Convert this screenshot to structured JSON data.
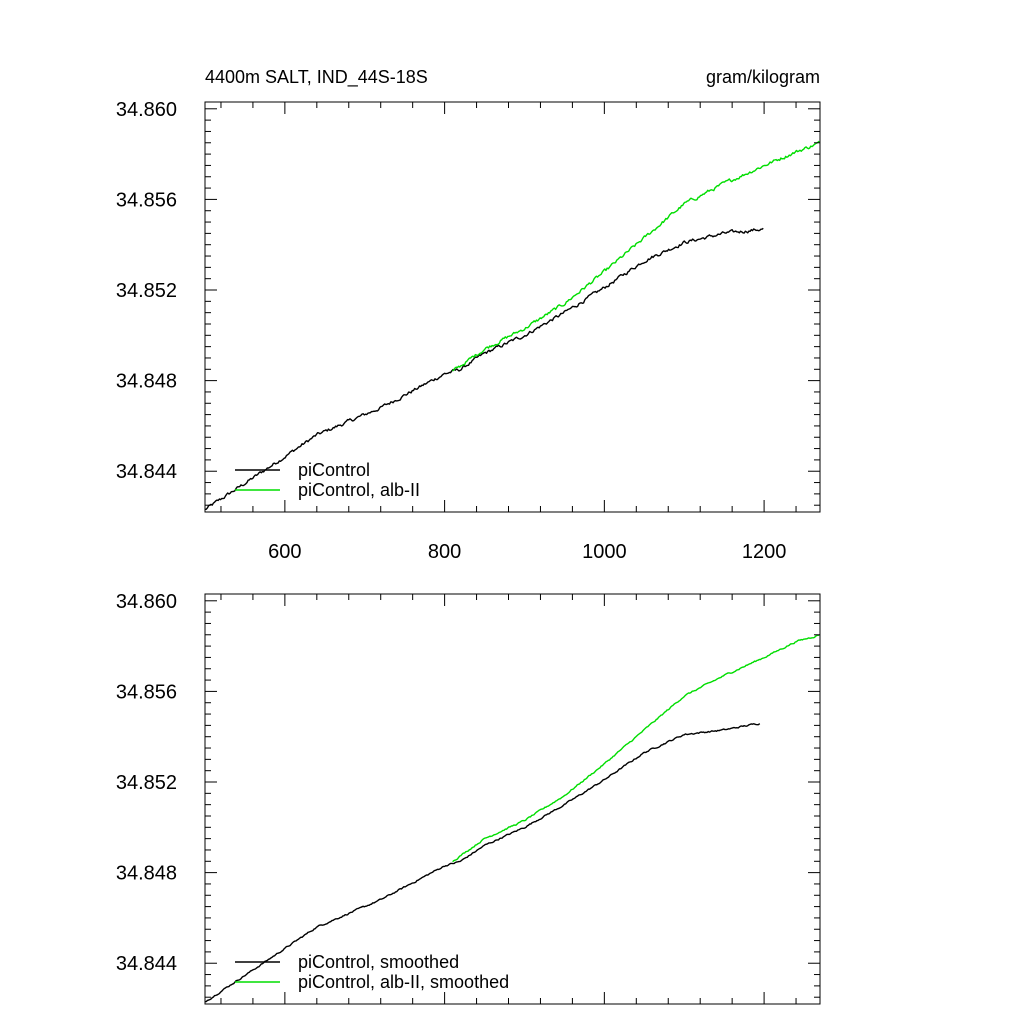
{
  "chart_data": [
    {
      "type": "line",
      "title": "4400m SALT, IND_44S-18S",
      "units": "gram/kilogram",
      "xlim": [
        500,
        1270
      ],
      "ylim": [
        34.8422,
        34.8603
      ],
      "x_ticks": [
        600,
        800,
        1000,
        1200
      ],
      "x_tick_labels": [
        "600",
        "800",
        "1000",
        "1200"
      ],
      "y_ticks": [
        34.844,
        34.848,
        34.852,
        34.856,
        34.86
      ],
      "y_tick_labels": [
        "34.844",
        "34.848",
        "34.852",
        "34.856",
        "34.860"
      ],
      "legend_position": "bottom-left",
      "series": [
        {
          "name": "piControl",
          "color": "#000000",
          "noise": 0.00013,
          "points": [
            [
              500,
              34.8423
            ],
            [
              560,
              34.8437
            ],
            [
              640,
              34.8456
            ],
            [
              720,
              34.8468
            ],
            [
              800,
              34.8483
            ],
            [
              820,
              34.8485
            ],
            [
              850,
              34.8492
            ],
            [
              900,
              34.85
            ],
            [
              950,
              34.851
            ],
            [
              1000,
              34.8521
            ],
            [
              1050,
              34.8533
            ],
            [
              1100,
              34.8541
            ],
            [
              1150,
              34.8545
            ],
            [
              1200,
              34.8547
            ]
          ]
        },
        {
          "name": "piControl, alb-II",
          "color": "#00dd00",
          "noise": 0.00013,
          "points": [
            [
              810,
              34.8484
            ],
            [
              850,
              34.8494
            ],
            [
              900,
              34.8503
            ],
            [
              950,
              34.8514
            ],
            [
              1000,
              34.8528
            ],
            [
              1050,
              34.8543
            ],
            [
              1100,
              34.8558
            ],
            [
              1150,
              34.8567
            ],
            [
              1200,
              34.8575
            ],
            [
              1240,
              34.8581
            ],
            [
              1270,
              34.8585
            ]
          ]
        }
      ]
    },
    {
      "type": "line",
      "xlim": [
        500,
        1270
      ],
      "ylim": [
        34.8422,
        34.8603
      ],
      "x_ticks": [
        600,
        800,
        1000,
        1200
      ],
      "y_ticks": [
        34.844,
        34.848,
        34.852,
        34.856,
        34.86
      ],
      "y_tick_labels": [
        "34.844",
        "34.848",
        "34.852",
        "34.856",
        "34.860"
      ],
      "legend_position": "bottom-left",
      "series": [
        {
          "name": "piControl, smoothed",
          "color": "#000000",
          "noise": 6e-05,
          "points": [
            [
              500,
              34.8423
            ],
            [
              560,
              34.8437
            ],
            [
              640,
              34.8456
            ],
            [
              720,
              34.8468
            ],
            [
              800,
              34.8483
            ],
            [
              820,
              34.8485
            ],
            [
              850,
              34.8492
            ],
            [
              900,
              34.85
            ],
            [
              950,
              34.851
            ],
            [
              1000,
              34.8521
            ],
            [
              1050,
              34.8533
            ],
            [
              1100,
              34.8541
            ],
            [
              1150,
              34.8543
            ],
            [
              1195,
              34.8546
            ]
          ]
        },
        {
          "name": "piControl, alb-II, smoothed",
          "color": "#00dd00",
          "noise": 6e-05,
          "points": [
            [
              810,
              34.8485
            ],
            [
              850,
              34.8495
            ],
            [
              900,
              34.8503
            ],
            [
              950,
              34.8514
            ],
            [
              1000,
              34.8528
            ],
            [
              1050,
              34.8543
            ],
            [
              1100,
              34.8558
            ],
            [
              1150,
              34.8567
            ],
            [
              1200,
              34.8575
            ],
            [
              1240,
              34.8582
            ],
            [
              1270,
              34.8585
            ]
          ]
        }
      ]
    }
  ]
}
